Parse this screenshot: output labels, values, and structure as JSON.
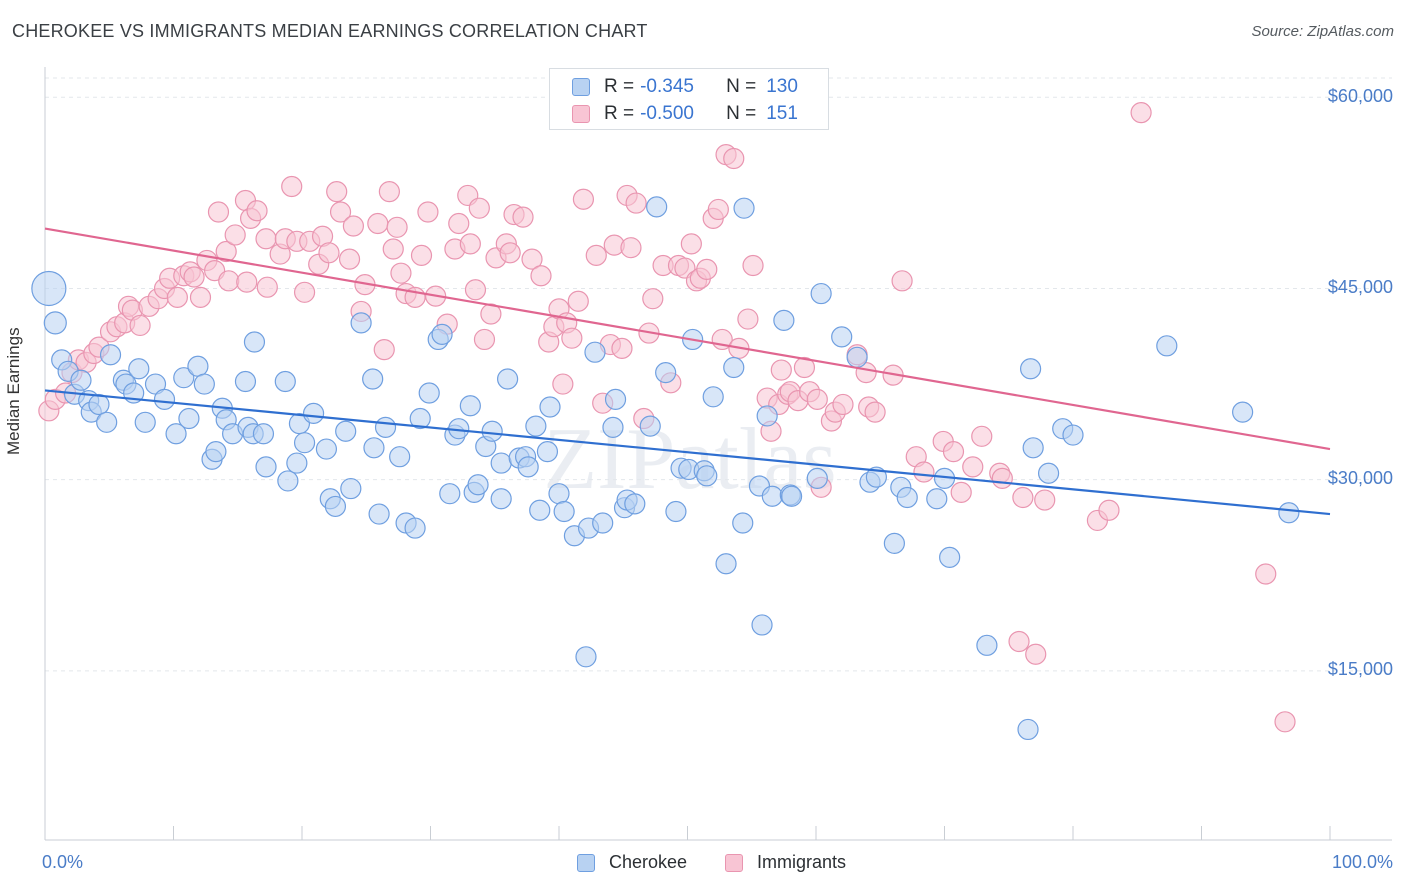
{
  "title": "CHEROKEE VS IMMIGRANTS MEDIAN EARNINGS CORRELATION CHART",
  "source": "Source: ZipAtlas.com",
  "watermark": "ZIPatlas",
  "legend": {
    "rows": [
      {
        "r_label": "R =",
        "r_value": "-0.345",
        "n_label": "N =",
        "n_value": "130",
        "color": "#6f9fe0"
      },
      {
        "r_label": "R =",
        "r_value": "-0.500",
        "n_label": "N =",
        "n_value": "151",
        "color": "#e995b0"
      }
    ],
    "series": [
      "Cherokee",
      "Immigrants"
    ]
  },
  "chart_data": {
    "type": "scatter",
    "title": "CHEROKEE VS IMMIGRANTS MEDIAN EARNINGS CORRELATION CHART",
    "xlabel": "",
    "ylabel": "Median Earnings",
    "x_tick_labels": [
      "0.0%",
      "100.0%"
    ],
    "y_tick_labels": [
      "$60,000",
      "$45,000",
      "$30,000",
      "$15,000"
    ],
    "y_ticks": [
      60000,
      45000,
      30000,
      15000
    ],
    "xlim": [
      0,
      100
    ],
    "ylim": [
      0,
      62000
    ],
    "grid": true,
    "legend_position": "top-center",
    "series": [
      {
        "name": "Cherokee",
        "color": "#6f9fe0",
        "fill": "#b8d2f2",
        "trend": {
          "x": [
            0,
            100
          ],
          "y": [
            37000,
            27300
          ],
          "color": "#2f6fd0"
        },
        "x": [
          0.3,
          0.8,
          1.3,
          1.8,
          2.3,
          2.8,
          3.4,
          3.6,
          4.2,
          4.8,
          5.1,
          6.1,
          6.3,
          6.9,
          7.3,
          7.8,
          8.6,
          9.3,
          10.2,
          10.8,
          11.2,
          11.9,
          12.4,
          13.0,
          13.3,
          13.8,
          14.1,
          14.6,
          15.6,
          15.8,
          16.2,
          16.3,
          17.0,
          17.2,
          18.7,
          18.9,
          19.6,
          19.8,
          20.2,
          20.9,
          21.9,
          22.2,
          22.6,
          23.4,
          23.8,
          24.6,
          25.5,
          25.6,
          26.0,
          26.5,
          27.6,
          28.1,
          28.8,
          29.2,
          29.9,
          30.6,
          30.9,
          31.5,
          31.9,
          32.2,
          33.1,
          33.4,
          33.7,
          34.3,
          34.8,
          35.5,
          35.5,
          36.0,
          36.9,
          37.4,
          37.6,
          38.2,
          38.5,
          39.1,
          39.3,
          40.0,
          40.4,
          41.2,
          42.1,
          42.3,
          42.8,
          43.4,
          44.2,
          44.4,
          45.1,
          45.3,
          45.9,
          47.1,
          47.6,
          48.3,
          49.1,
          49.5,
          50.1,
          50.4,
          51.3,
          51.5,
          52.0,
          53.0,
          53.6,
          54.3,
          54.4,
          55.6,
          55.8,
          56.2,
          56.6,
          57.5,
          58.0,
          58.1,
          60.1,
          60.4,
          62.0,
          63.2,
          64.2,
          64.7,
          66.1,
          66.6,
          67.1,
          69.4,
          70.0,
          70.4,
          73.3,
          76.5,
          76.7,
          76.9,
          78.1,
          79.2,
          80.0,
          87.3,
          93.2,
          96.8
        ],
        "y": [
          45000,
          42300,
          39400,
          38500,
          36700,
          37800,
          36200,
          35300,
          35900,
          34500,
          39800,
          37800,
          37500,
          36800,
          38700,
          34500,
          37500,
          36300,
          33600,
          38000,
          34800,
          38900,
          37500,
          31600,
          32200,
          35600,
          34700,
          33600,
          37700,
          34100,
          33600,
          40800,
          33600,
          31000,
          37700,
          29900,
          31300,
          34400,
          32900,
          35200,
          32400,
          28500,
          27900,
          33800,
          29300,
          42300,
          37900,
          32500,
          27300,
          34100,
          31800,
          26600,
          26200,
          34800,
          36800,
          41000,
          41400,
          28900,
          33500,
          34000,
          35800,
          29000,
          29600,
          32600,
          33800,
          31300,
          28500,
          37900,
          31700,
          31800,
          31000,
          34200,
          27600,
          32200,
          35700,
          28900,
          27500,
          25600,
          16100,
          26200,
          40000,
          26600,
          34100,
          36300,
          27800,
          28400,
          28100,
          34200,
          51400,
          38400,
          27500,
          30900,
          30800,
          41000,
          30700,
          30300,
          36500,
          23400,
          38800,
          26600,
          51300,
          29500,
          18600,
          35000,
          28700,
          42500,
          28800,
          28700,
          30100,
          44600,
          41200,
          39600,
          29800,
          30200,
          25000,
          29400,
          28600,
          28500,
          30100,
          23900,
          17000,
          10400,
          38700,
          32500,
          30500,
          34000,
          33500,
          40500,
          35300,
          27400
        ],
        "sizes": [
          34,
          22,
          20,
          20,
          20,
          20,
          20,
          20,
          20,
          20,
          20,
          20,
          20,
          20,
          20,
          20,
          20,
          20,
          20,
          20,
          20,
          20,
          20,
          20,
          20,
          20,
          20,
          20,
          20,
          20,
          20,
          20,
          20,
          20,
          20,
          20,
          20,
          20,
          20,
          20,
          20,
          20,
          20,
          20,
          20,
          20,
          20,
          20,
          20,
          20,
          20,
          20,
          20,
          20,
          20,
          20,
          20,
          20,
          20,
          20,
          20,
          20,
          20,
          20,
          20,
          20,
          20,
          20,
          20,
          20,
          20,
          20,
          20,
          20,
          20,
          20,
          20,
          20,
          20,
          20,
          20,
          20,
          20,
          20,
          20,
          20,
          20,
          20,
          20,
          20,
          20,
          20,
          20,
          20,
          20,
          20,
          20,
          20,
          20,
          20,
          20,
          20,
          20,
          20,
          20,
          20,
          20,
          20,
          20,
          20,
          20,
          20,
          20,
          20,
          20,
          20,
          20,
          20,
          20,
          20,
          20,
          20,
          20,
          20,
          20,
          20,
          20,
          20,
          20,
          20
        ]
      },
      {
        "name": "Immigrants",
        "color": "#e995b0",
        "fill": "#f8c5d4",
        "trend": {
          "x": [
            0,
            100
          ],
          "y": [
            49700,
            32400
          ],
          "color": "#e06690"
        },
        "x": [
          0.3,
          0.8,
          1.6,
          2.1,
          2.6,
          3.2,
          3.8,
          4.2,
          5.1,
          5.6,
          6.2,
          6.5,
          6.8,
          7.4,
          8.1,
          8.8,
          9.3,
          9.7,
          10.3,
          10.8,
          11.3,
          11.6,
          12.1,
          12.6,
          13.2,
          13.5,
          14.1,
          14.3,
          14.8,
          15.6,
          15.7,
          16.0,
          16.5,
          17.2,
          17.3,
          18.3,
          18.7,
          19.2,
          19.6,
          20.2,
          20.6,
          21.3,
          21.6,
          22.1,
          22.7,
          23.0,
          23.7,
          24.0,
          24.6,
          24.9,
          25.9,
          26.4,
          26.8,
          27.1,
          27.4,
          27.7,
          28.1,
          28.8,
          29.3,
          29.8,
          30.4,
          31.3,
          31.9,
          32.2,
          32.9,
          33.1,
          33.5,
          33.8,
          34.2,
          34.7,
          35.1,
          35.9,
          36.2,
          36.5,
          37.2,
          37.9,
          38.6,
          39.2,
          39.6,
          40.0,
          40.3,
          40.6,
          41.0,
          41.5,
          41.9,
          42.9,
          43.4,
          44.0,
          44.3,
          44.9,
          45.3,
          45.6,
          46.0,
          46.6,
          47.0,
          47.3,
          48.1,
          48.7,
          49.3,
          49.8,
          50.3,
          50.7,
          51.0,
          51.5,
          52.0,
          52.4,
          52.7,
          53.0,
          53.6,
          54.0,
          54.4,
          54.7,
          55.1,
          56.2,
          56.5,
          57.1,
          57.3,
          57.8,
          58.0,
          58.6,
          59.1,
          59.5,
          60.1,
          60.4,
          61.2,
          61.5,
          62.1,
          63.2,
          63.9,
          64.1,
          64.6,
          66.0,
          66.7,
          67.8,
          68.4,
          69.9,
          70.7,
          71.3,
          72.2,
          72.9,
          74.3,
          74.5,
          75.8,
          76.1,
          77.1,
          77.8,
          81.9,
          82.8,
          85.3,
          95.0,
          96.5
        ],
        "y": [
          35400,
          36300,
          36800,
          38400,
          39400,
          39200,
          39900,
          40400,
          41600,
          42000,
          42300,
          43600,
          43300,
          42100,
          43600,
          44200,
          45000,
          45800,
          44300,
          46000,
          46300,
          45900,
          44300,
          47200,
          46400,
          51000,
          47900,
          45600,
          49200,
          51900,
          45500,
          50500,
          51100,
          48900,
          45100,
          47700,
          48900,
          53000,
          48700,
          44700,
          48700,
          46900,
          49100,
          47800,
          52600,
          51000,
          47300,
          49900,
          43200,
          45300,
          50100,
          40200,
          52600,
          48100,
          49800,
          46200,
          44600,
          44300,
          47600,
          51000,
          44400,
          42200,
          48100,
          50100,
          52300,
          48500,
          44900,
          51300,
          41000,
          43000,
          47400,
          48500,
          47800,
          50800,
          50600,
          47300,
          46000,
          40800,
          42000,
          43400,
          37500,
          42300,
          41100,
          44000,
          52000,
          47600,
          36000,
          40600,
          48400,
          40300,
          52300,
          48200,
          51700,
          34800,
          41500,
          44200,
          46800,
          37600,
          46800,
          46600,
          48500,
          45600,
          45800,
          46500,
          50500,
          51200,
          41000,
          55500,
          55200,
          40300,
          59600,
          42600,
          46800,
          36400,
          33800,
          35900,
          38600,
          36700,
          36900,
          36200,
          38800,
          36900,
          36300,
          29400,
          34600,
          35300,
          35900,
          39800,
          38400,
          35700,
          35300,
          38200,
          45600,
          31800,
          30600,
          33000,
          32200,
          29000,
          31000,
          33400,
          30500,
          30100,
          17300,
          28600,
          16300,
          28400,
          26800,
          27600,
          58800,
          22600,
          11000
        ],
        "sizes": [
          20,
          20,
          20,
          20,
          20,
          20,
          20,
          20,
          20,
          20,
          20,
          20,
          20,
          20,
          20,
          20,
          20,
          20,
          20,
          20,
          20,
          20,
          20,
          20,
          20,
          20,
          20,
          20,
          20,
          20,
          20,
          20,
          20,
          20,
          20,
          20,
          20,
          20,
          20,
          20,
          20,
          20,
          20,
          20,
          20,
          20,
          20,
          20,
          20,
          20,
          20,
          20,
          20,
          20,
          20,
          20,
          20,
          20,
          20,
          20,
          20,
          20,
          20,
          20,
          20,
          20,
          20,
          20,
          20,
          20,
          20,
          20,
          20,
          20,
          20,
          20,
          20,
          20,
          20,
          20,
          20,
          20,
          20,
          20,
          20,
          20,
          20,
          20,
          20,
          20,
          20,
          20,
          20,
          20,
          20,
          20,
          20,
          20,
          20,
          20,
          20,
          20,
          20,
          20,
          20,
          20,
          20,
          20,
          20,
          20,
          20,
          20,
          20,
          20,
          20,
          20,
          20,
          20,
          20,
          20,
          20,
          20,
          20,
          20,
          20,
          20,
          20,
          20,
          20,
          20,
          20,
          20,
          20,
          20,
          20,
          20,
          20,
          20,
          20,
          20,
          20,
          20,
          20,
          20,
          20,
          20,
          20,
          20,
          20,
          20,
          20
        ]
      }
    ]
  }
}
